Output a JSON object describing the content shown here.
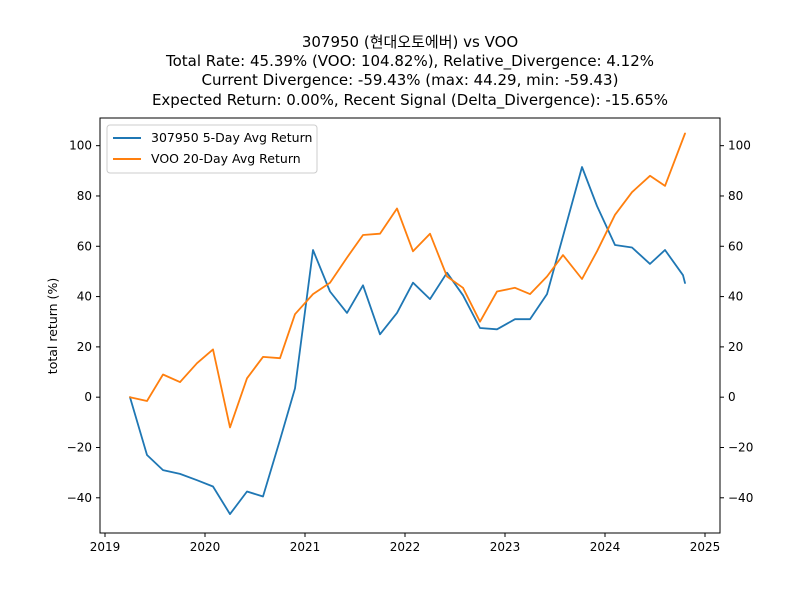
{
  "chart_data": {
    "type": "line",
    "title_lines": [
      "307950 (현대오토에버) vs VOO",
      "Total Rate: 45.39% (VOO: 104.82%), Relative_Divergence: 4.12%",
      "Current Divergence: -59.43% (max: 44.29, min: -59.43)",
      "Expected Return: 0.00%, Recent Signal (Delta_Divergence): -15.65%"
    ],
    "ylabel": "total return (%)",
    "xlabel": "",
    "xlim": [
      2018.95,
      2025.15
    ],
    "ylim": [
      -54,
      111
    ],
    "x_ticks": [
      2019,
      2020,
      2021,
      2022,
      2023,
      2024,
      2025
    ],
    "y_ticks": [
      -40,
      -20,
      0,
      20,
      40,
      60,
      80,
      100
    ],
    "legend_position": "upper-left",
    "series": [
      {
        "name": "307950 5-Day Avg Return",
        "color": "#1f77b4",
        "x": [
          2019.25,
          2019.42,
          2019.58,
          2019.75,
          2019.92,
          2020.08,
          2020.25,
          2020.42,
          2020.58,
          2020.75,
          2020.9,
          2021.08,
          2021.25,
          2021.42,
          2021.58,
          2021.75,
          2021.92,
          2022.08,
          2022.25,
          2022.42,
          2022.58,
          2022.75,
          2022.92,
          2023.1,
          2023.25,
          2023.42,
          2023.58,
          2023.77,
          2023.92,
          2024.1,
          2024.27,
          2024.45,
          2024.6,
          2024.78,
          2024.8
        ],
        "values": [
          0,
          -23,
          -29,
          -30.5,
          -33,
          -35.5,
          -46.5,
          -37.5,
          -39.5,
          -17,
          3.5,
          58.5,
          42,
          33.5,
          44.5,
          25,
          33.5,
          45.5,
          39,
          49.5,
          40.5,
          27.5,
          27,
          31,
          31,
          41,
          64,
          91.5,
          76,
          60.5,
          59.5,
          53,
          58.5,
          48.5,
          45.39
        ]
      },
      {
        "name": "VOO 20-Day Avg Return",
        "color": "#ff7f0e",
        "x": [
          2019.25,
          2019.42,
          2019.58,
          2019.75,
          2019.92,
          2020.08,
          2020.25,
          2020.42,
          2020.58,
          2020.75,
          2020.9,
          2021.08,
          2021.25,
          2021.42,
          2021.58,
          2021.75,
          2021.92,
          2022.08,
          2022.25,
          2022.42,
          2022.58,
          2022.75,
          2022.92,
          2023.1,
          2023.25,
          2023.42,
          2023.58,
          2023.77,
          2023.92,
          2024.1,
          2024.27,
          2024.45,
          2024.6,
          2024.8
        ],
        "values": [
          0,
          -1.5,
          9,
          6,
          13.5,
          19,
          -12,
          7.5,
          16,
          15.5,
          33,
          41,
          45.5,
          55.5,
          64.5,
          65,
          75,
          58,
          65,
          48,
          43.5,
          30,
          42,
          43.5,
          41,
          48,
          56.5,
          47,
          58,
          72.5,
          81.5,
          88,
          84,
          104.82
        ]
      }
    ]
  }
}
